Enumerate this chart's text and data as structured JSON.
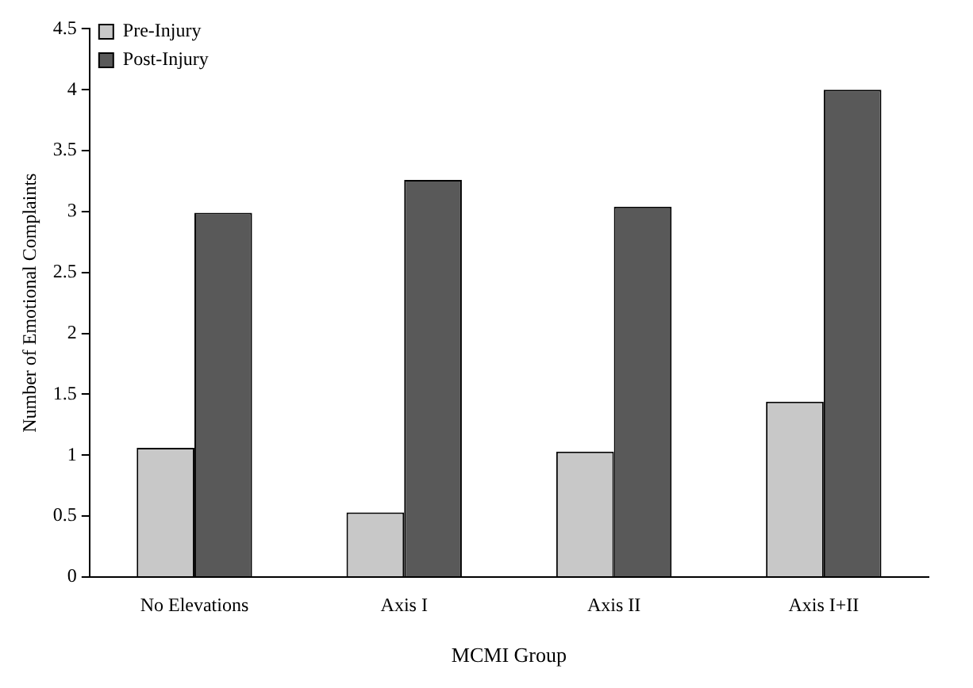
{
  "chart_data": {
    "type": "bar",
    "xlabel": "MCMI Group",
    "ylabel": "Number of Emotional Complaints",
    "categories": [
      "No Elevations",
      "Axis I",
      "Axis II",
      "Axis I+II"
    ],
    "series": [
      {
        "name": "Pre-Injury",
        "color": "#c8c8c8",
        "values": [
          1.06,
          0.53,
          1.03,
          1.44
        ]
      },
      {
        "name": "Post-Injury",
        "color": "#595959",
        "values": [
          2.99,
          3.26,
          3.04,
          4.0
        ]
      }
    ],
    "ylim": [
      0,
      4.5
    ],
    "yticks": [
      0,
      0.5,
      1,
      1.5,
      2,
      2.5,
      3,
      3.5,
      4,
      4.5
    ],
    "grid": false,
    "legend": "top left"
  }
}
